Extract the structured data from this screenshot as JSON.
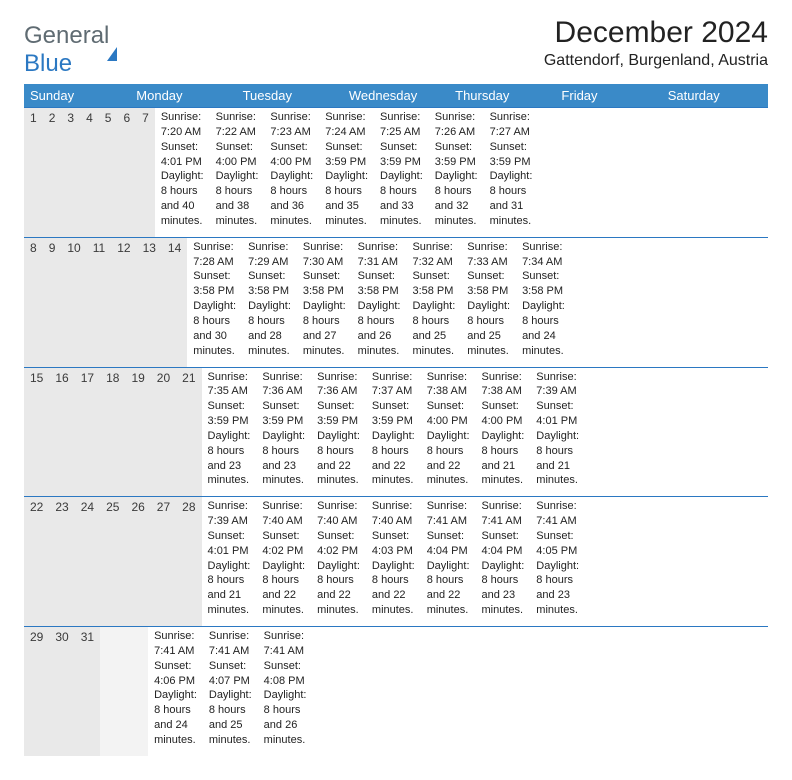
{
  "logo": {
    "word1": "General",
    "word2": "Blue"
  },
  "title": "December 2024",
  "subtitle": "Gattendorf, Burgenland, Austria",
  "colors": {
    "header_bg": "#3a8ac8",
    "header_text": "#ffffff",
    "daynum_bg": "#e9e9e9",
    "week_border": "#2b78c2",
    "logo_gray": "#5f6b72",
    "logo_blue": "#2b78c2"
  },
  "day_headers": [
    "Sunday",
    "Monday",
    "Tuesday",
    "Wednesday",
    "Thursday",
    "Friday",
    "Saturday"
  ],
  "weeks": [
    [
      {
        "n": "1",
        "sr": "7:20 AM",
        "ss": "4:01 PM",
        "dl": "8 hours and 40 minutes."
      },
      {
        "n": "2",
        "sr": "7:22 AM",
        "ss": "4:00 PM",
        "dl": "8 hours and 38 minutes."
      },
      {
        "n": "3",
        "sr": "7:23 AM",
        "ss": "4:00 PM",
        "dl": "8 hours and 36 minutes."
      },
      {
        "n": "4",
        "sr": "7:24 AM",
        "ss": "3:59 PM",
        "dl": "8 hours and 35 minutes."
      },
      {
        "n": "5",
        "sr": "7:25 AM",
        "ss": "3:59 PM",
        "dl": "8 hours and 33 minutes."
      },
      {
        "n": "6",
        "sr": "7:26 AM",
        "ss": "3:59 PM",
        "dl": "8 hours and 32 minutes."
      },
      {
        "n": "7",
        "sr": "7:27 AM",
        "ss": "3:59 PM",
        "dl": "8 hours and 31 minutes."
      }
    ],
    [
      {
        "n": "8",
        "sr": "7:28 AM",
        "ss": "3:58 PM",
        "dl": "8 hours and 30 minutes."
      },
      {
        "n": "9",
        "sr": "7:29 AM",
        "ss": "3:58 PM",
        "dl": "8 hours and 28 minutes."
      },
      {
        "n": "10",
        "sr": "7:30 AM",
        "ss": "3:58 PM",
        "dl": "8 hours and 27 minutes."
      },
      {
        "n": "11",
        "sr": "7:31 AM",
        "ss": "3:58 PM",
        "dl": "8 hours and 26 minutes."
      },
      {
        "n": "12",
        "sr": "7:32 AM",
        "ss": "3:58 PM",
        "dl": "8 hours and 25 minutes."
      },
      {
        "n": "13",
        "sr": "7:33 AM",
        "ss": "3:58 PM",
        "dl": "8 hours and 25 minutes."
      },
      {
        "n": "14",
        "sr": "7:34 AM",
        "ss": "3:58 PM",
        "dl": "8 hours and 24 minutes."
      }
    ],
    [
      {
        "n": "15",
        "sr": "7:35 AM",
        "ss": "3:59 PM",
        "dl": "8 hours and 23 minutes."
      },
      {
        "n": "16",
        "sr": "7:36 AM",
        "ss": "3:59 PM",
        "dl": "8 hours and 23 minutes."
      },
      {
        "n": "17",
        "sr": "7:36 AM",
        "ss": "3:59 PM",
        "dl": "8 hours and 22 minutes."
      },
      {
        "n": "18",
        "sr": "7:37 AM",
        "ss": "3:59 PM",
        "dl": "8 hours and 22 minutes."
      },
      {
        "n": "19",
        "sr": "7:38 AM",
        "ss": "4:00 PM",
        "dl": "8 hours and 22 minutes."
      },
      {
        "n": "20",
        "sr": "7:38 AM",
        "ss": "4:00 PM",
        "dl": "8 hours and 21 minutes."
      },
      {
        "n": "21",
        "sr": "7:39 AM",
        "ss": "4:01 PM",
        "dl": "8 hours and 21 minutes."
      }
    ],
    [
      {
        "n": "22",
        "sr": "7:39 AM",
        "ss": "4:01 PM",
        "dl": "8 hours and 21 minutes."
      },
      {
        "n": "23",
        "sr": "7:40 AM",
        "ss": "4:02 PM",
        "dl": "8 hours and 22 minutes."
      },
      {
        "n": "24",
        "sr": "7:40 AM",
        "ss": "4:02 PM",
        "dl": "8 hours and 22 minutes."
      },
      {
        "n": "25",
        "sr": "7:40 AM",
        "ss": "4:03 PM",
        "dl": "8 hours and 22 minutes."
      },
      {
        "n": "26",
        "sr": "7:41 AM",
        "ss": "4:04 PM",
        "dl": "8 hours and 22 minutes."
      },
      {
        "n": "27",
        "sr": "7:41 AM",
        "ss": "4:04 PM",
        "dl": "8 hours and 23 minutes."
      },
      {
        "n": "28",
        "sr": "7:41 AM",
        "ss": "4:05 PM",
        "dl": "8 hours and 23 minutes."
      }
    ],
    [
      {
        "n": "29",
        "sr": "7:41 AM",
        "ss": "4:06 PM",
        "dl": "8 hours and 24 minutes."
      },
      {
        "n": "30",
        "sr": "7:41 AM",
        "ss": "4:07 PM",
        "dl": "8 hours and 25 minutes."
      },
      {
        "n": "31",
        "sr": "7:41 AM",
        "ss": "4:08 PM",
        "dl": "8 hours and 26 minutes."
      },
      null,
      null,
      null,
      null
    ]
  ],
  "labels": {
    "sunrise": "Sunrise:",
    "sunset": "Sunset:",
    "daylight": "Daylight:"
  }
}
